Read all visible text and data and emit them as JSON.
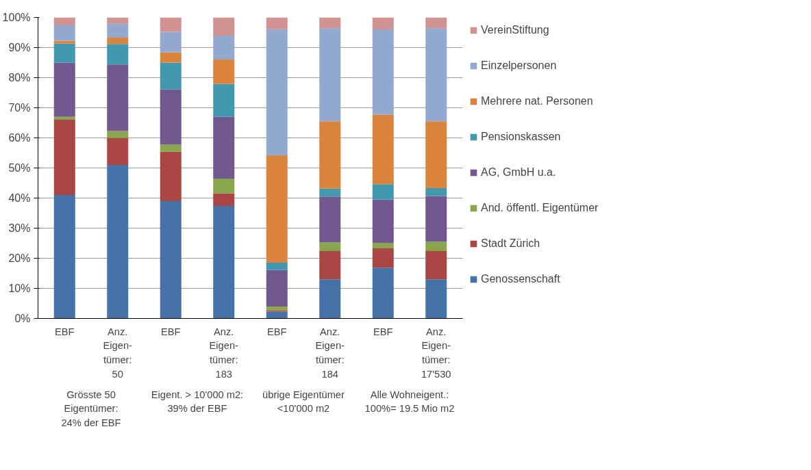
{
  "chart_data": {
    "type": "bar",
    "stacked": true,
    "categories": [
      "EBF",
      "Anz.\nEigen-\ntümer:\n50",
      "EBF",
      "Anz.\nEigen-\ntümer:\n183",
      "EBF",
      "Anz.\nEigen-\ntümer:\n184",
      "EBF",
      "Anz.\nEigen-\ntümer:\n17'530"
    ],
    "annotations": [
      "Grösste 50\nEigentümer:\n24% der EBF",
      "Eigent. > 10'000 m2:\n39% der EBF",
      "übrige Eigentümer\n<10'000 m2",
      "Alle Wohneigent.:\n100%= 19.5 Mio m2"
    ],
    "series": [
      {
        "name": "Genossenschaft",
        "color": "#4572a7",
        "values": [
          41,
          51,
          39,
          37.4,
          2.3,
          13,
          16.9,
          13
        ]
      },
      {
        "name": "Stadt Zürich",
        "color": "#aa4643",
        "values": [
          25,
          9,
          16.4,
          4.2,
          0.4,
          9.4,
          6.4,
          9.4
        ]
      },
      {
        "name": "And. öffentl. Eigentümer",
        "color": "#89a54e",
        "values": [
          1,
          2.3,
          2.4,
          4.9,
          1.3,
          2.9,
          1.8,
          3.1
        ]
      },
      {
        "name": "AG, GmbH u.a.",
        "color": "#71588f",
        "values": [
          18,
          22.1,
          18.3,
          20.5,
          12.1,
          15.2,
          14.4,
          15.2
        ]
      },
      {
        "name": "Pensionskassen",
        "color": "#4198af",
        "values": [
          6.3,
          6.8,
          8.9,
          10.9,
          2.4,
          2.6,
          5.1,
          2.6
        ]
      },
      {
        "name": "Mehrere nat. Personen",
        "color": "#db843d",
        "values": [
          1,
          2.1,
          3.4,
          8.1,
          35.7,
          22.4,
          23.1,
          22.2
        ]
      },
      {
        "name": "Einzelpersonen",
        "color": "#93a9cf",
        "values": [
          5.1,
          4.6,
          6.8,
          8,
          41.9,
          30.9,
          28.3,
          30.9
        ]
      },
      {
        "name": "VereinStiftung",
        "color": "#d19392",
        "values": [
          2.6,
          2.1,
          4.8,
          6,
          3.9,
          3.6,
          4,
          3.6
        ]
      }
    ],
    "ylim": [
      0,
      100
    ],
    "yticks": [
      {
        "value": 0,
        "label": "0%"
      },
      {
        "value": 10,
        "label": "10%"
      },
      {
        "value": 20,
        "label": "20%"
      },
      {
        "value": 30,
        "label": "30%"
      },
      {
        "value": 40,
        "label": "40%"
      },
      {
        "value": 50,
        "label": "50%"
      },
      {
        "value": 60,
        "label": "60%"
      },
      {
        "value": 70,
        "label": "70%"
      },
      {
        "value": 80,
        "label": "80%"
      },
      {
        "value": 90,
        "label": "90%"
      },
      {
        "value": 100,
        "label": "100%"
      }
    ],
    "grid": "y",
    "legend": "right"
  }
}
